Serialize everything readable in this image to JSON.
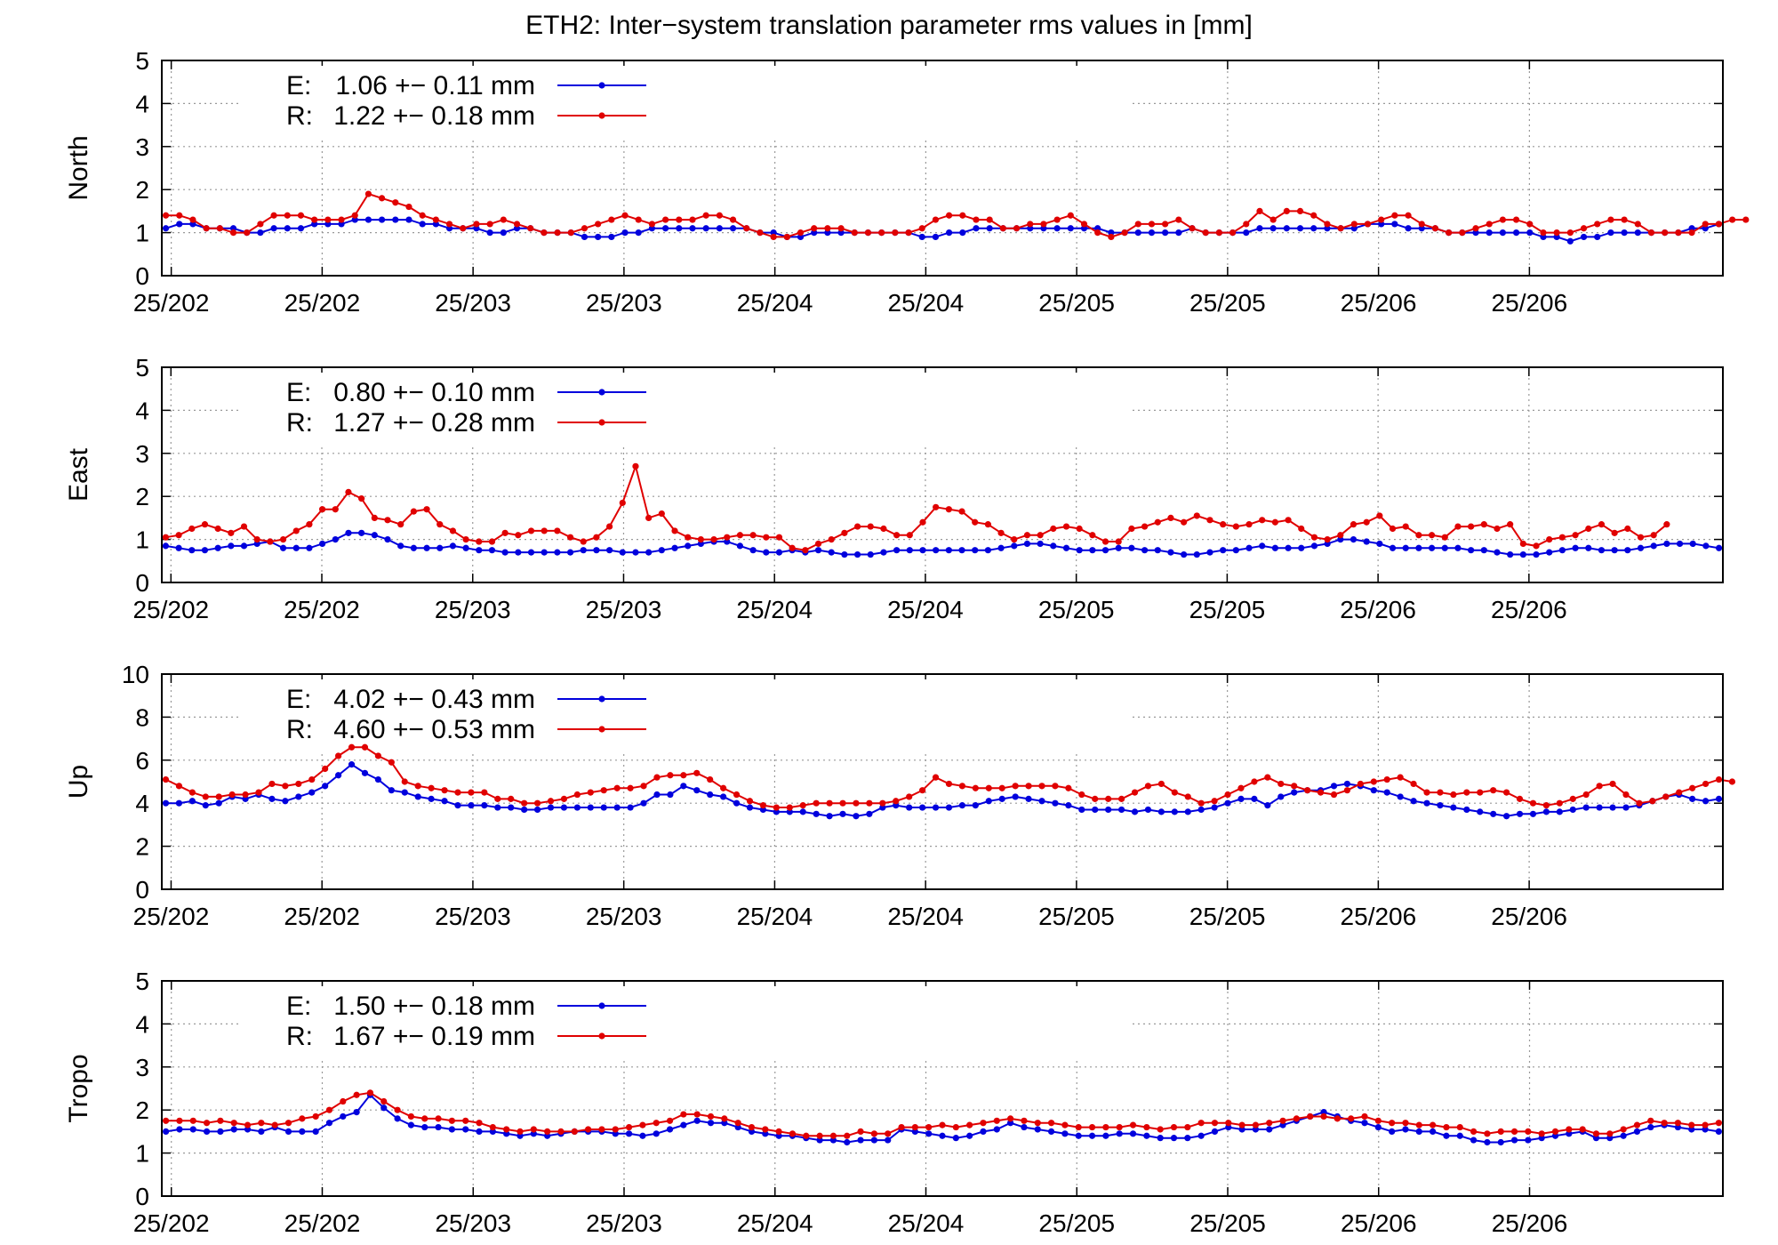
{
  "title": "ETH2: Inter−system translation parameter rms values in [mm]",
  "colors": {
    "E": "#0000dd",
    "R": "#e00000",
    "grid": "#999999",
    "axis": "#000000"
  },
  "x_tick_labels": [
    "25/202",
    "25/202",
    "25/203",
    "25/203",
    "25/204",
    "25/204",
    "25/205",
    "25/205",
    "25/206",
    "25/206"
  ],
  "chart_data": [
    {
      "type": "line",
      "panel": "North",
      "ylabel": "North",
      "ylim": [
        0,
        5
      ],
      "yticks": [
        "0",
        "1",
        "2",
        "3",
        "4",
        "5"
      ],
      "grid": true,
      "legend_position": "top-left",
      "series": [
        {
          "name": "E",
          "legend_label": "E:",
          "legend_value": "1.06 +− 0.11 mm",
          "values": [
            1.1,
            1.2,
            1.2,
            1.1,
            1.1,
            1.1,
            1.0,
            1.0,
            1.1,
            1.1,
            1.1,
            1.2,
            1.2,
            1.2,
            1.3,
            1.3,
            1.3,
            1.3,
            1.3,
            1.2,
            1.2,
            1.1,
            1.1,
            1.1,
            1.0,
            1.0,
            1.1,
            1.1,
            1.0,
            1.0,
            1.0,
            0.9,
            0.9,
            0.9,
            1.0,
            1.0,
            1.1,
            1.1,
            1.1,
            1.1,
            1.1,
            1.1,
            1.1,
            1.1,
            1.0,
            1.0,
            0.9,
            0.9,
            1.0,
            1.0,
            1.0,
            1.0,
            1.0,
            1.0,
            1.0,
            1.0,
            0.9,
            0.9,
            1.0,
            1.0,
            1.1,
            1.1,
            1.1,
            1.1,
            1.1,
            1.1,
            1.1,
            1.1,
            1.1,
            1.1,
            1.0,
            1.0,
            1.0,
            1.0,
            1.0,
            1.0,
            1.1,
            1.0,
            1.0,
            1.0,
            1.0,
            1.1,
            1.1,
            1.1,
            1.1,
            1.1,
            1.1,
            1.1,
            1.1,
            1.2,
            1.2,
            1.2,
            1.1,
            1.1,
            1.1,
            1.0,
            1.0,
            1.0,
            1.0,
            1.0,
            1.0,
            1.0,
            0.9,
            0.9,
            0.8,
            0.9,
            0.9,
            1.0,
            1.0,
            1.0,
            1.0,
            1.0,
            1.0,
            1.1,
            1.1,
            1.2
          ]
        },
        {
          "name": "R",
          "legend_label": "R:",
          "legend_value": "1.22 +− 0.18 mm",
          "values": [
            1.4,
            1.4,
            1.3,
            1.1,
            1.1,
            1.0,
            1.0,
            1.2,
            1.4,
            1.4,
            1.4,
            1.3,
            1.3,
            1.3,
            1.4,
            1.9,
            1.8,
            1.7,
            1.6,
            1.4,
            1.3,
            1.2,
            1.1,
            1.2,
            1.2,
            1.3,
            1.2,
            1.1,
            1.0,
            1.0,
            1.0,
            1.1,
            1.2,
            1.3,
            1.4,
            1.3,
            1.2,
            1.3,
            1.3,
            1.3,
            1.4,
            1.4,
            1.3,
            1.1,
            1.0,
            0.9,
            0.9,
            1.0,
            1.1,
            1.1,
            1.1,
            1.0,
            1.0,
            1.0,
            1.0,
            1.0,
            1.1,
            1.3,
            1.4,
            1.4,
            1.3,
            1.3,
            1.1,
            1.1,
            1.2,
            1.2,
            1.3,
            1.4,
            1.2,
            1.0,
            0.9,
            1.0,
            1.2,
            1.2,
            1.2,
            1.3,
            1.1,
            1.0,
            1.0,
            1.0,
            1.2,
            1.5,
            1.3,
            1.5,
            1.5,
            1.4,
            1.2,
            1.1,
            1.2,
            1.2,
            1.3,
            1.4,
            1.4,
            1.2,
            1.1,
            1.0,
            1.0,
            1.1,
            1.2,
            1.3,
            1.3,
            1.2,
            1.0,
            1.0,
            1.0,
            1.1,
            1.2,
            1.3,
            1.3,
            1.2,
            1.0,
            1.0,
            1.0,
            1.0,
            1.2,
            1.2,
            1.3,
            1.3
          ]
        }
      ]
    },
    {
      "type": "line",
      "panel": "East",
      "ylabel": "East",
      "ylim": [
        0,
        5
      ],
      "yticks": [
        "0",
        "1",
        "2",
        "3",
        "4",
        "5"
      ],
      "grid": true,
      "legend_position": "top-left",
      "series": [
        {
          "name": "E",
          "legend_label": "E:",
          "legend_value": "0.80 +− 0.10 mm",
          "values": [
            0.85,
            0.8,
            0.75,
            0.75,
            0.8,
            0.85,
            0.85,
            0.9,
            0.95,
            0.8,
            0.8,
            0.8,
            0.9,
            1.0,
            1.15,
            1.15,
            1.1,
            1.0,
            0.85,
            0.8,
            0.8,
            0.8,
            0.85,
            0.8,
            0.75,
            0.75,
            0.7,
            0.7,
            0.7,
            0.7,
            0.7,
            0.7,
            0.75,
            0.75,
            0.75,
            0.7,
            0.7,
            0.7,
            0.75,
            0.8,
            0.85,
            0.9,
            0.95,
            0.95,
            0.85,
            0.75,
            0.7,
            0.7,
            0.75,
            0.7,
            0.75,
            0.7,
            0.65,
            0.65,
            0.65,
            0.7,
            0.75,
            0.75,
            0.75,
            0.75,
            0.75,
            0.75,
            0.75,
            0.75,
            0.8,
            0.85,
            0.9,
            0.9,
            0.85,
            0.8,
            0.75,
            0.75,
            0.75,
            0.8,
            0.8,
            0.75,
            0.75,
            0.7,
            0.65,
            0.65,
            0.7,
            0.75,
            0.75,
            0.8,
            0.85,
            0.8,
            0.8,
            0.8,
            0.85,
            0.9,
            1.0,
            1.0,
            0.95,
            0.9,
            0.8,
            0.8,
            0.8,
            0.8,
            0.8,
            0.8,
            0.75,
            0.75,
            0.7,
            0.65,
            0.65,
            0.65,
            0.7,
            0.75,
            0.8,
            0.8,
            0.75,
            0.75,
            0.75,
            0.8,
            0.85,
            0.9,
            0.9,
            0.9,
            0.85,
            0.8
          ]
        },
        {
          "name": "R",
          "legend_label": "R:",
          "legend_value": "1.27 +− 0.28 mm",
          "values": [
            1.05,
            1.1,
            1.25,
            1.35,
            1.25,
            1.15,
            1.3,
            1.0,
            0.95,
            1.0,
            1.2,
            1.35,
            1.7,
            1.7,
            2.1,
            1.95,
            1.5,
            1.45,
            1.35,
            1.65,
            1.7,
            1.35,
            1.2,
            1.0,
            0.95,
            0.95,
            1.15,
            1.1,
            1.2,
            1.2,
            1.2,
            1.05,
            0.95,
            1.05,
            1.3,
            1.85,
            2.7,
            1.5,
            1.6,
            1.2,
            1.05,
            1.0,
            1.0,
            1.05,
            1.1,
            1.1,
            1.05,
            1.05,
            0.8,
            0.75,
            0.9,
            1.0,
            1.15,
            1.3,
            1.3,
            1.25,
            1.1,
            1.1,
            1.4,
            1.75,
            1.7,
            1.65,
            1.4,
            1.35,
            1.15,
            1.0,
            1.1,
            1.1,
            1.25,
            1.3,
            1.25,
            1.1,
            0.95,
            0.95,
            1.25,
            1.3,
            1.4,
            1.5,
            1.4,
            1.55,
            1.45,
            1.35,
            1.3,
            1.35,
            1.45,
            1.4,
            1.45,
            1.25,
            1.05,
            1.0,
            1.1,
            1.35,
            1.4,
            1.55,
            1.25,
            1.3,
            1.1,
            1.1,
            1.05,
            1.3,
            1.3,
            1.35,
            1.25,
            1.35,
            0.9,
            0.85,
            1.0,
            1.05,
            1.1,
            1.25,
            1.35,
            1.15,
            1.25,
            1.05,
            1.1,
            1.35
          ]
        }
      ]
    },
    {
      "type": "line",
      "panel": "Up",
      "ylabel": "Up",
      "ylim": [
        0,
        10
      ],
      "yticks": [
        "0",
        "2",
        "4",
        "6",
        "8",
        "10"
      ],
      "grid": true,
      "legend_position": "top-left",
      "series": [
        {
          "name": "E",
          "legend_label": "E:",
          "legend_value": "4.02 +− 0.43 mm",
          "values": [
            4.0,
            4.0,
            4.1,
            3.9,
            4.0,
            4.3,
            4.2,
            4.4,
            4.2,
            4.1,
            4.3,
            4.5,
            4.8,
            5.3,
            5.8,
            5.4,
            5.1,
            4.6,
            4.5,
            4.3,
            4.2,
            4.1,
            3.9,
            3.9,
            3.9,
            3.8,
            3.8,
            3.7,
            3.7,
            3.8,
            3.8,
            3.8,
            3.8,
            3.8,
            3.8,
            3.8,
            4.0,
            4.4,
            4.4,
            4.8,
            4.6,
            4.4,
            4.3,
            4.0,
            3.8,
            3.7,
            3.6,
            3.6,
            3.6,
            3.5,
            3.4,
            3.5,
            3.4,
            3.5,
            3.8,
            3.9,
            3.8,
            3.8,
            3.8,
            3.8,
            3.9,
            3.9,
            4.1,
            4.2,
            4.3,
            4.2,
            4.1,
            4.0,
            3.9,
            3.7,
            3.7,
            3.7,
            3.7,
            3.6,
            3.7,
            3.6,
            3.6,
            3.6,
            3.7,
            3.8,
            4.0,
            4.2,
            4.2,
            3.9,
            4.3,
            4.5,
            4.6,
            4.6,
            4.8,
            4.9,
            4.8,
            4.6,
            4.5,
            4.3,
            4.1,
            4.0,
            3.9,
            3.8,
            3.7,
            3.6,
            3.5,
            3.4,
            3.5,
            3.5,
            3.6,
            3.6,
            3.7,
            3.8,
            3.8,
            3.8,
            3.8,
            3.9,
            4.1,
            4.3,
            4.4,
            4.2,
            4.1,
            4.2
          ]
        },
        {
          "name": "R",
          "legend_label": "R:",
          "legend_value": "4.60 +− 0.53 mm",
          "values": [
            5.1,
            4.8,
            4.5,
            4.3,
            4.3,
            4.4,
            4.4,
            4.5,
            4.9,
            4.8,
            4.9,
            5.1,
            5.6,
            6.2,
            6.6,
            6.6,
            6.2,
            5.9,
            5.0,
            4.8,
            4.7,
            4.6,
            4.5,
            4.5,
            4.5,
            4.2,
            4.2,
            4.0,
            4.0,
            4.1,
            4.2,
            4.4,
            4.5,
            4.6,
            4.7,
            4.7,
            4.8,
            5.2,
            5.3,
            5.3,
            5.4,
            5.1,
            4.7,
            4.4,
            4.1,
            3.9,
            3.8,
            3.8,
            3.9,
            4.0,
            4.0,
            4.0,
            4.0,
            4.0,
            4.0,
            4.1,
            4.3,
            4.6,
            5.2,
            4.9,
            4.8,
            4.7,
            4.7,
            4.7,
            4.8,
            4.8,
            4.8,
            4.8,
            4.7,
            4.4,
            4.2,
            4.2,
            4.2,
            4.5,
            4.8,
            4.9,
            4.5,
            4.3,
            4.0,
            4.1,
            4.4,
            4.7,
            5.0,
            5.2,
            4.9,
            4.8,
            4.6,
            4.5,
            4.4,
            4.6,
            4.9,
            5.0,
            5.1,
            5.2,
            4.9,
            4.5,
            4.5,
            4.4,
            4.5,
            4.5,
            4.6,
            4.5,
            4.2,
            4.0,
            3.9,
            4.0,
            4.2,
            4.4,
            4.8,
            4.9,
            4.4,
            4.0,
            4.1,
            4.3,
            4.5,
            4.7,
            4.9,
            5.1,
            5.0
          ]
        }
      ]
    },
    {
      "type": "line",
      "panel": "Tropo",
      "ylabel": "Tropo",
      "ylim": [
        0,
        5
      ],
      "yticks": [
        "0",
        "1",
        "2",
        "3",
        "4",
        "5"
      ],
      "grid": true,
      "legend_position": "top-left",
      "series": [
        {
          "name": "E",
          "legend_label": "E:",
          "legend_value": "1.50 +− 0.18 mm",
          "values": [
            1.5,
            1.55,
            1.55,
            1.5,
            1.5,
            1.55,
            1.55,
            1.5,
            1.6,
            1.5,
            1.5,
            1.5,
            1.7,
            1.85,
            1.95,
            2.35,
            2.05,
            1.8,
            1.65,
            1.6,
            1.6,
            1.55,
            1.55,
            1.5,
            1.5,
            1.45,
            1.4,
            1.45,
            1.4,
            1.45,
            1.5,
            1.5,
            1.5,
            1.45,
            1.45,
            1.4,
            1.45,
            1.55,
            1.65,
            1.75,
            1.7,
            1.7,
            1.6,
            1.5,
            1.45,
            1.4,
            1.4,
            1.35,
            1.3,
            1.3,
            1.25,
            1.3,
            1.3,
            1.3,
            1.55,
            1.5,
            1.45,
            1.4,
            1.35,
            1.4,
            1.5,
            1.55,
            1.7,
            1.6,
            1.55,
            1.5,
            1.45,
            1.4,
            1.4,
            1.4,
            1.45,
            1.45,
            1.4,
            1.35,
            1.35,
            1.35,
            1.4,
            1.5,
            1.6,
            1.55,
            1.55,
            1.55,
            1.65,
            1.75,
            1.85,
            1.95,
            1.85,
            1.75,
            1.7,
            1.6,
            1.5,
            1.55,
            1.5,
            1.5,
            1.4,
            1.4,
            1.3,
            1.25,
            1.25,
            1.3,
            1.3,
            1.35,
            1.4,
            1.45,
            1.5,
            1.35,
            1.35,
            1.4,
            1.5,
            1.6,
            1.65,
            1.6,
            1.55,
            1.55,
            1.5
          ]
        },
        {
          "name": "R",
          "legend_label": "R:",
          "legend_value": "1.67 +− 0.19 mm",
          "values": [
            1.75,
            1.75,
            1.75,
            1.7,
            1.75,
            1.7,
            1.65,
            1.7,
            1.65,
            1.7,
            1.8,
            1.85,
            2.0,
            2.2,
            2.35,
            2.4,
            2.2,
            2.0,
            1.85,
            1.8,
            1.8,
            1.75,
            1.75,
            1.7,
            1.6,
            1.55,
            1.5,
            1.55,
            1.5,
            1.5,
            1.5,
            1.55,
            1.55,
            1.55,
            1.6,
            1.65,
            1.7,
            1.75,
            1.9,
            1.9,
            1.85,
            1.8,
            1.7,
            1.6,
            1.55,
            1.5,
            1.45,
            1.4,
            1.4,
            1.4,
            1.4,
            1.5,
            1.45,
            1.45,
            1.6,
            1.6,
            1.6,
            1.65,
            1.6,
            1.65,
            1.7,
            1.75,
            1.8,
            1.75,
            1.7,
            1.7,
            1.65,
            1.6,
            1.6,
            1.6,
            1.6,
            1.65,
            1.6,
            1.55,
            1.6,
            1.6,
            1.7,
            1.7,
            1.7,
            1.65,
            1.65,
            1.7,
            1.75,
            1.8,
            1.85,
            1.85,
            1.8,
            1.8,
            1.85,
            1.75,
            1.7,
            1.7,
            1.65,
            1.65,
            1.6,
            1.6,
            1.5,
            1.45,
            1.5,
            1.5,
            1.5,
            1.45,
            1.5,
            1.55,
            1.55,
            1.45,
            1.45,
            1.55,
            1.65,
            1.75,
            1.7,
            1.7,
            1.65,
            1.65,
            1.7
          ]
        }
      ]
    }
  ]
}
